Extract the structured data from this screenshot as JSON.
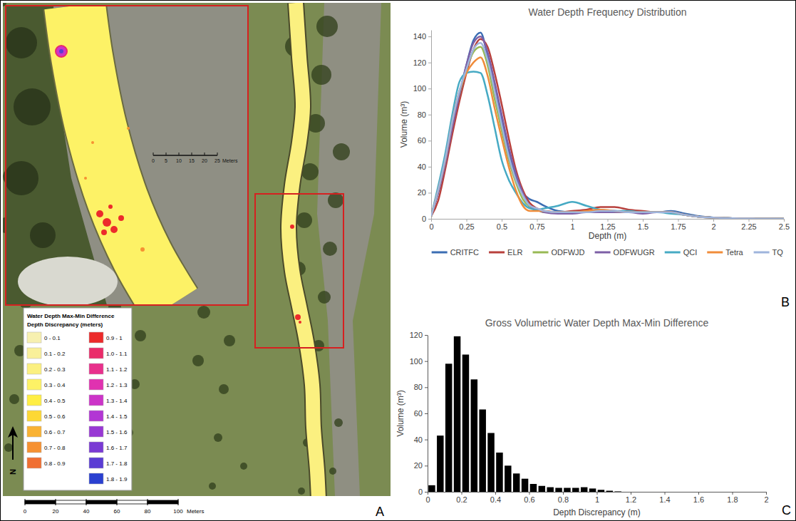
{
  "chart_data": [
    {
      "type": "map",
      "panel": "A",
      "legend_title": "Water Depth Max-Min Difference",
      "legend_subtitle": "Depth Discrepancy (meters)",
      "categories": [
        "0 - 0.1",
        "0.1 - 0.2",
        "0.2 - 0.3",
        "0.3 - 0.4",
        "0.4 - 0.5",
        "0.5 - 0.6",
        "0.6 - 0.7",
        "0.7 - 0.8",
        "0.8 - 0.9",
        "0.9 - 1",
        "1.0 - 1.1",
        "1.1 - 1.2",
        "1.2 - 1.3",
        "1.3 - 1.4",
        "1.4 - 1.5",
        "1.5 - 1.6",
        "1.6 - 1.7",
        "1.7 - 1.8",
        "1.8 - 1.9"
      ],
      "colors": [
        "#f7f0b0",
        "#f9f09a",
        "#fbf080",
        "#fdf266",
        "#ffee44",
        "#fdd835",
        "#f9b233",
        "#f69132",
        "#f06f32",
        "#ec2b2b",
        "#ea2c6a",
        "#e8308c",
        "#e032b0",
        "#cc34c8",
        "#b236d4",
        "#9838d4",
        "#7a3ad4",
        "#5a3cd4",
        "#2a40d0"
      ],
      "north_label": "N",
      "xlim": [
        0,
        100
      ],
      "xticks": [
        0,
        20,
        40,
        60,
        80,
        100
      ],
      "xlabel": "Meters",
      "inset_scale": {
        "xlim": [
          0,
          25
        ],
        "xticks": [
          0,
          5,
          10,
          15,
          20,
          25
        ],
        "xlabel": "Meters"
      }
    },
    {
      "type": "line",
      "panel": "B",
      "title": "Water Depth Frequency Distribution",
      "xlabel": "Depth (m)",
      "ylabel": "Volume (m³)",
      "x": [
        0,
        0.05,
        0.1,
        0.15,
        0.2,
        0.25,
        0.3,
        0.35,
        0.4,
        0.45,
        0.5,
        0.55,
        0.6,
        0.65,
        0.7,
        0.75,
        0.8,
        0.9,
        1,
        1.1,
        1.2,
        1.3,
        1.4,
        1.5,
        1.6,
        1.7,
        1.8,
        1.9,
        2,
        2.1,
        2.2,
        2.3,
        2.4,
        2.5
      ],
      "series": [
        {
          "name": "CRITFC",
          "color": "#3b6db3",
          "values": [
            2,
            20,
            42,
            70,
            95,
            118,
            137,
            143,
            125,
            100,
            75,
            52,
            33,
            20,
            15,
            13,
            10,
            6,
            5,
            5,
            6,
            6,
            5,
            5,
            5,
            6,
            4,
            2,
            1,
            0.5,
            0.3,
            0.2,
            0.1,
            0
          ]
        },
        {
          "name": "ELR",
          "color": "#b8403c",
          "values": [
            2,
            14,
            38,
            65,
            90,
            112,
            130,
            138,
            132,
            112,
            88,
            62,
            38,
            22,
            12,
            8,
            6,
            5,
            6,
            7,
            9,
            9,
            7,
            6,
            5,
            5,
            3,
            1.5,
            1,
            0.5,
            0.3,
            0.2,
            0.1,
            0
          ]
        },
        {
          "name": "ODFWJD",
          "color": "#98b954",
          "values": [
            2,
            22,
            45,
            72,
            95,
            115,
            128,
            132,
            118,
            92,
            68,
            45,
            28,
            15,
            9,
            7,
            5,
            5,
            5,
            5,
            5,
            5,
            5,
            5,
            5,
            5,
            3,
            1.5,
            1,
            0.5,
            0.3,
            0.2,
            0.1,
            0
          ]
        },
        {
          "name": "ODFWUGR",
          "color": "#7d5fa6",
          "values": [
            2,
            20,
            42,
            70,
            95,
            118,
            135,
            140,
            128,
            105,
            80,
            55,
            35,
            20,
            10,
            7,
            5,
            4,
            4,
            5,
            5,
            5,
            5,
            4,
            5,
            5,
            3,
            1.5,
            1,
            0.5,
            0.3,
            0.2,
            0.1,
            0
          ]
        },
        {
          "name": "QCI",
          "color": "#46aac4",
          "values": [
            2,
            25,
            50,
            80,
            105,
            112,
            113,
            112,
            95,
            70,
            45,
            30,
            20,
            12,
            8,
            7,
            8,
            10,
            13,
            10,
            7,
            6,
            6,
            5,
            5,
            4,
            3,
            1.5,
            1,
            0.5,
            0.3,
            0.2,
            0.1,
            0
          ]
        },
        {
          "name": "Tetra",
          "color": "#f08c3a",
          "values": [
            2,
            22,
            45,
            75,
            98,
            112,
            120,
            124,
            110,
            85,
            62,
            40,
            22,
            10,
            6,
            6,
            6,
            5,
            5,
            6,
            7,
            6,
            5,
            5,
            5,
            5,
            3,
            1.5,
            1,
            0.5,
            0.3,
            0.2,
            0.1,
            0
          ]
        },
        {
          "name": "TQ",
          "color": "#9fb4dc",
          "values": [
            2,
            22,
            46,
            75,
            98,
            115,
            130,
            135,
            122,
            98,
            72,
            48,
            30,
            18,
            10,
            8,
            6,
            5,
            5,
            5,
            6,
            6,
            5,
            5,
            5,
            5,
            3,
            1.5,
            1,
            0.5,
            0.3,
            0.2,
            0.1,
            0
          ]
        }
      ],
      "xlim": [
        0,
        2.5
      ],
      "xticks": [
        0,
        0.25,
        0.5,
        0.75,
        1,
        1.25,
        1.5,
        1.75,
        2,
        2.25,
        2.5
      ],
      "ylim": [
        0,
        145
      ],
      "yticks": [
        0,
        20,
        40,
        60,
        80,
        100,
        120,
        140
      ],
      "legend": "bottom",
      "grid": false
    },
    {
      "type": "histogram",
      "panel": "C",
      "title": "Gross Volumetric Water Depth Max-Min Difference",
      "xlabel": "Depth Discrepancy (m)",
      "ylabel": "Volume (m³)",
      "bins": [
        0,
        0.05,
        0.1,
        0.15,
        0.2,
        0.25,
        0.3,
        0.35,
        0.4,
        0.45,
        0.5,
        0.55,
        0.6,
        0.65,
        0.7,
        0.75,
        0.8,
        0.85,
        0.9,
        0.95,
        1,
        1.05,
        1.1,
        1.15
      ],
      "values": [
        5,
        43,
        98,
        119,
        105,
        86,
        63,
        45,
        30,
        20,
        14,
        10,
        6,
        4.5,
        3.5,
        3,
        3,
        3,
        3.5,
        2.5,
        1.5,
        0.8,
        0.3
      ],
      "color": "#000000",
      "xlim": [
        0,
        2
      ],
      "xticks": [
        0,
        0.2,
        0.4,
        0.6,
        0.8,
        1,
        1.2,
        1.4,
        1.6,
        1.8,
        2
      ],
      "ylim": [
        0,
        120
      ],
      "yticks": [
        0,
        20,
        40,
        60,
        80,
        100,
        120
      ],
      "grid": false
    }
  ]
}
